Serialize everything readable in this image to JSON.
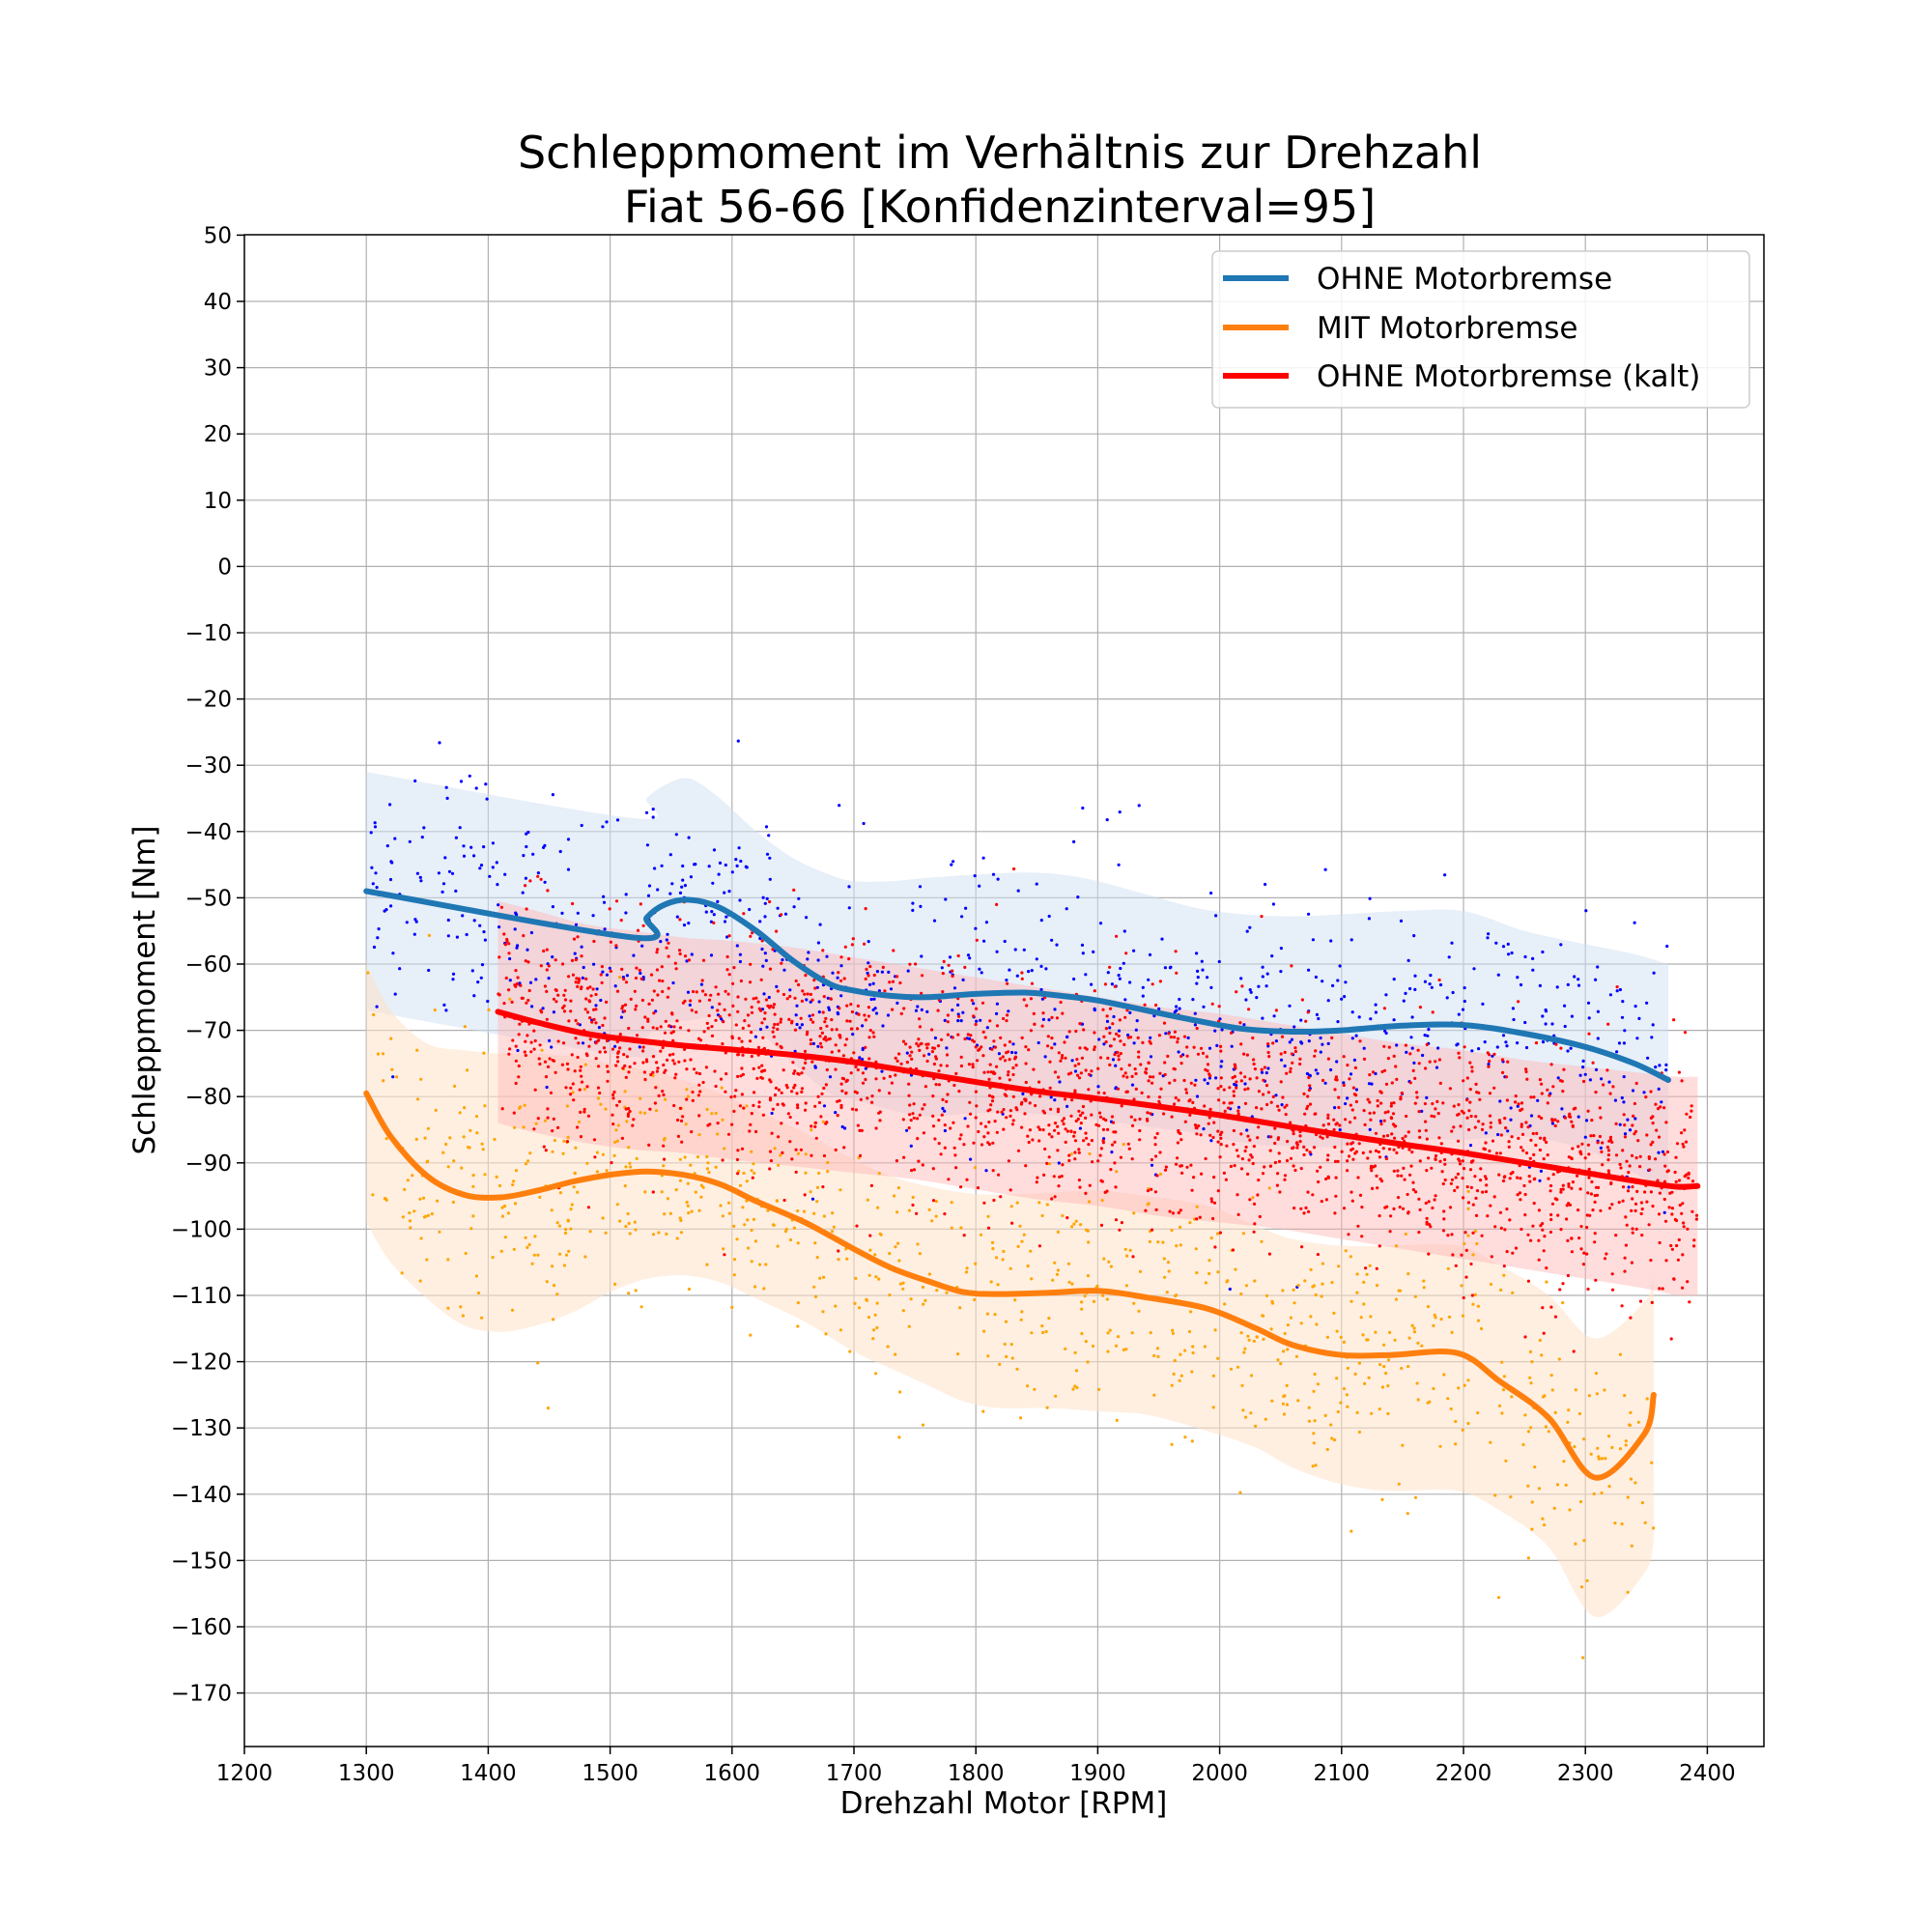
{
  "chart_data": {
    "type": "line",
    "title": [
      "Schleppmoment im Verhältnis zur Drehzahl",
      "Fiat 56-66 [Konfidenzinterval=95]"
    ],
    "xlabel": "Drehzahl Motor [RPM]",
    "ylabel": "Schleppmoment [Nm]",
    "xlim": [
      1200,
      2450
    ],
    "ylim": [
      -178,
      50
    ],
    "xticks": [
      1200,
      1300,
      1400,
      1500,
      1600,
      1700,
      1800,
      1900,
      2000,
      2100,
      2200,
      2300,
      2400
    ],
    "xtick_labels": [
      "1200",
      "1300",
      "1400",
      "1500",
      "1600",
      "1700",
      "1800",
      "1900",
      "2000",
      "2100",
      "2200",
      "2300",
      "2400"
    ],
    "yticks": [
      50,
      40,
      30,
      20,
      10,
      0,
      -10,
      -20,
      -30,
      -40,
      -50,
      -60,
      -70,
      -80,
      -90,
      -100,
      -110,
      -120,
      -130,
      -140,
      -150,
      -160,
      -170
    ],
    "ytick_labels": [
      "50",
      "40",
      "30",
      "20",
      "10",
      "0",
      "−10",
      "−20",
      "−30",
      "−40",
      "−50",
      "−60",
      "−70",
      "−80",
      "−90",
      "−100",
      "−110",
      "−120",
      "−130",
      "−140",
      "−150",
      "−160",
      "−170"
    ],
    "grid": true,
    "legend_position": "top-right",
    "series": [
      {
        "name": "OHNE Motorbremse",
        "color": "#1f77b4",
        "band_color": "#cfe0f1",
        "scatter_color": "#0000ff",
        "x": [
          1300,
          1520,
          1530,
          1545,
          1565,
          1590,
          1620,
          1650,
          1680,
          1700,
          1730,
          1760,
          1800,
          1840,
          1870,
          1900,
          1940,
          1980,
          2020,
          2060,
          2100,
          2150,
          2200,
          2250,
          2300,
          2340,
          2368
        ],
        "y": [
          -49,
          -56,
          -53,
          -51,
          -50.3,
          -51.5,
          -55,
          -59.5,
          -63,
          -64,
          -64.8,
          -65,
          -64.5,
          -64.3,
          -64.8,
          -65.5,
          -67,
          -68.5,
          -69.8,
          -70.2,
          -70,
          -69.3,
          -69.2,
          -70.5,
          -72.5,
          -75,
          -77.5
        ],
        "ci_upper": [
          -31,
          -38,
          -35,
          -33,
          -32,
          -35,
          -40,
          -44,
          -46.5,
          -47.5,
          -47.5,
          -47,
          -46.5,
          -46.2,
          -46.5,
          -47.5,
          -49.5,
          -51.5,
          -52.5,
          -52.8,
          -52.5,
          -52,
          -52,
          -55,
          -57,
          -58.5,
          -60
        ],
        "ci_lower": [
          -67,
          -74,
          -71,
          -69,
          -68.5,
          -68,
          -70,
          -75,
          -79.5,
          -80.5,
          -82,
          -83,
          -82.5,
          -82.5,
          -83,
          -83.5,
          -84.5,
          -85.5,
          -87,
          -87.5,
          -87.5,
          -86.5,
          -86.5,
          -86,
          -88,
          -91.5,
          -95
        ]
      },
      {
        "name": "MIT Motorbremse",
        "color": "#ff7f0e",
        "band_color": "#ffe2c8",
        "scatter_color": "#ffa500",
        "x": [
          1300,
          1320,
          1350,
          1380,
          1410,
          1440,
          1470,
          1500,
          1530,
          1560,
          1590,
          1620,
          1660,
          1700,
          1730,
          1760,
          1790,
          1820,
          1860,
          1900,
          1940,
          1990,
          2030,
          2060,
          2100,
          2140,
          2195,
          2230,
          2270,
          2308,
          2348,
          2356
        ],
        "y": [
          -79.5,
          -86,
          -92,
          -94.8,
          -95.2,
          -94.2,
          -92.8,
          -91.8,
          -91.3,
          -91.8,
          -93.2,
          -95.8,
          -99,
          -103,
          -105.8,
          -107.8,
          -109.5,
          -109.8,
          -109.6,
          -109.3,
          -110.3,
          -112,
          -115,
          -117.5,
          -119,
          -119,
          -118.7,
          -123,
          -128.5,
          -137.5,
          -131,
          -125
        ],
        "ci_upper": [
          -60,
          -67,
          -72,
          -73,
          -73.5,
          -73.5,
          -74,
          -75,
          -76,
          -77.5,
          -79.5,
          -82,
          -85.5,
          -89.5,
          -92,
          -93.5,
          -94.5,
          -94.8,
          -94.5,
          -94.2,
          -95,
          -96.5,
          -99.5,
          -101.5,
          -102.5,
          -102.5,
          -102.5,
          -105.5,
          -110,
          -116.5,
          -111,
          -107
        ],
        "ci_lower": [
          -99,
          -105,
          -110.5,
          -114.5,
          -115.5,
          -114.5,
          -112.5,
          -109.5,
          -107.5,
          -107,
          -108,
          -110.5,
          -114,
          -118.5,
          -121,
          -123.5,
          -126,
          -127,
          -127,
          -127.5,
          -128,
          -130.5,
          -133,
          -136,
          -138.5,
          -139.5,
          -139.5,
          -142.5,
          -148,
          -158.5,
          -152,
          -147
        ]
      },
      {
        "name": "OHNE Motorbremse (kalt)",
        "color": "#ff0000",
        "band_color": "#ffb3b3",
        "scatter_color": "#ff0000",
        "x": [
          1408,
          1440,
          1480,
          1520,
          1560,
          1600,
          1650,
          1700,
          1750,
          1800,
          1850,
          1900,
          1950,
          2000,
          2050,
          2100,
          2150,
          2200,
          2250,
          2300,
          2350,
          2375,
          2392
        ],
        "y": [
          -67.2,
          -68.8,
          -70.5,
          -71.5,
          -72.3,
          -72.9,
          -73.7,
          -74.8,
          -76.3,
          -77.8,
          -79.2,
          -80.3,
          -81.5,
          -82.8,
          -84.3,
          -85.8,
          -87.2,
          -88.5,
          -90,
          -91.5,
          -93,
          -93.6,
          -93.5
        ],
        "ci_upper": [
          -50.5,
          -52,
          -54,
          -55,
          -56,
          -56.5,
          -57.5,
          -59,
          -60.5,
          -62,
          -63.5,
          -65,
          -66.5,
          -67.5,
          -69,
          -70.5,
          -72,
          -73,
          -74.5,
          -75.5,
          -76.5,
          -77,
          -77
        ],
        "ci_lower": [
          -84,
          -85.5,
          -87,
          -88,
          -88.5,
          -89.5,
          -90.5,
          -91.5,
          -92.5,
          -94,
          -95.5,
          -96.5,
          -98,
          -99,
          -100,
          -101.5,
          -103,
          -104.5,
          -106,
          -107.5,
          -109,
          -110,
          -110
        ]
      }
    ]
  }
}
